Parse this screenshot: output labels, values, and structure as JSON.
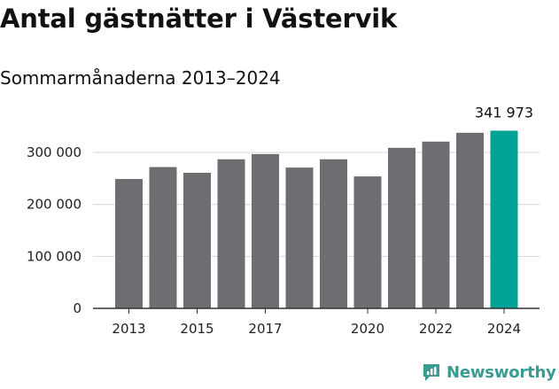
{
  "title": "Antal gästnätter i Västervik",
  "subtitle": "Sommarmånaderna 2013–2024",
  "brand": {
    "name": "Newsworthy",
    "icon": "newsworthy-logo-icon",
    "color": "#3a9b91"
  },
  "colors": {
    "bar": "#6e6d72",
    "highlight": "#00a396",
    "grid": "#d6d6d6",
    "axis": "#333333"
  },
  "chart_data": {
    "type": "bar",
    "title": "Antal gästnätter i Västervik",
    "subtitle": "Sommarmånaderna 2013–2024",
    "xlabel": "",
    "ylabel": "",
    "categories": [
      "2013",
      "2014",
      "2015",
      "2016",
      "2017",
      "2018",
      "2019",
      "2020",
      "2021",
      "2022",
      "2023",
      "2024"
    ],
    "values": [
      249000,
      272000,
      261000,
      287000,
      297000,
      271000,
      287000,
      254000,
      309000,
      321000,
      338000,
      341973
    ],
    "highlight_index": 11,
    "x_tick_labels": [
      "2013",
      "2015",
      "2017",
      "2020",
      "2022",
      "2024"
    ],
    "y_ticks": [
      0,
      100000,
      200000,
      300000
    ],
    "y_tick_labels": [
      "0",
      "100 000",
      "200 000",
      "300 000"
    ],
    "ylim": [
      0,
      341973
    ],
    "grid": true,
    "annotations": [
      {
        "category": "2024",
        "text": "341 973"
      }
    ]
  }
}
